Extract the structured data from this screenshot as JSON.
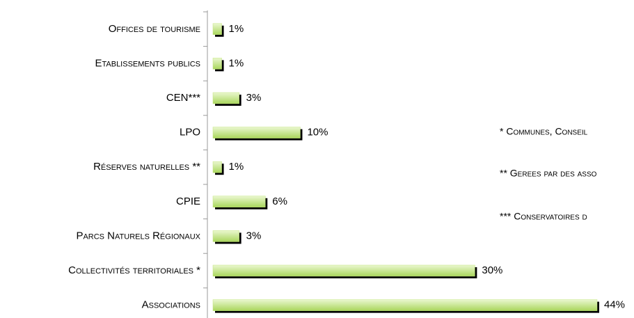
{
  "chart_data": {
    "type": "bar",
    "orientation": "horizontal",
    "categories": [
      "Offices de tourisme",
      "Etablissements publics",
      "CEN***",
      "LPO",
      "Réserves naturelles **",
      "CPIE",
      "Parcs Naturels Régionaux",
      "Collectivités territoriales *",
      "Associations"
    ],
    "values": [
      1,
      1,
      3,
      10,
      1,
      6,
      3,
      30,
      44
    ],
    "value_labels": [
      "1%",
      "1%",
      "3%",
      "10%",
      "1%",
      "6%",
      "3%",
      "30%",
      "44%"
    ],
    "color": "#c4e67e",
    "annotations": [
      "* Communes, Conseil",
      "** Gerees par des asso",
      "*** Conservatoires d"
    ]
  }
}
